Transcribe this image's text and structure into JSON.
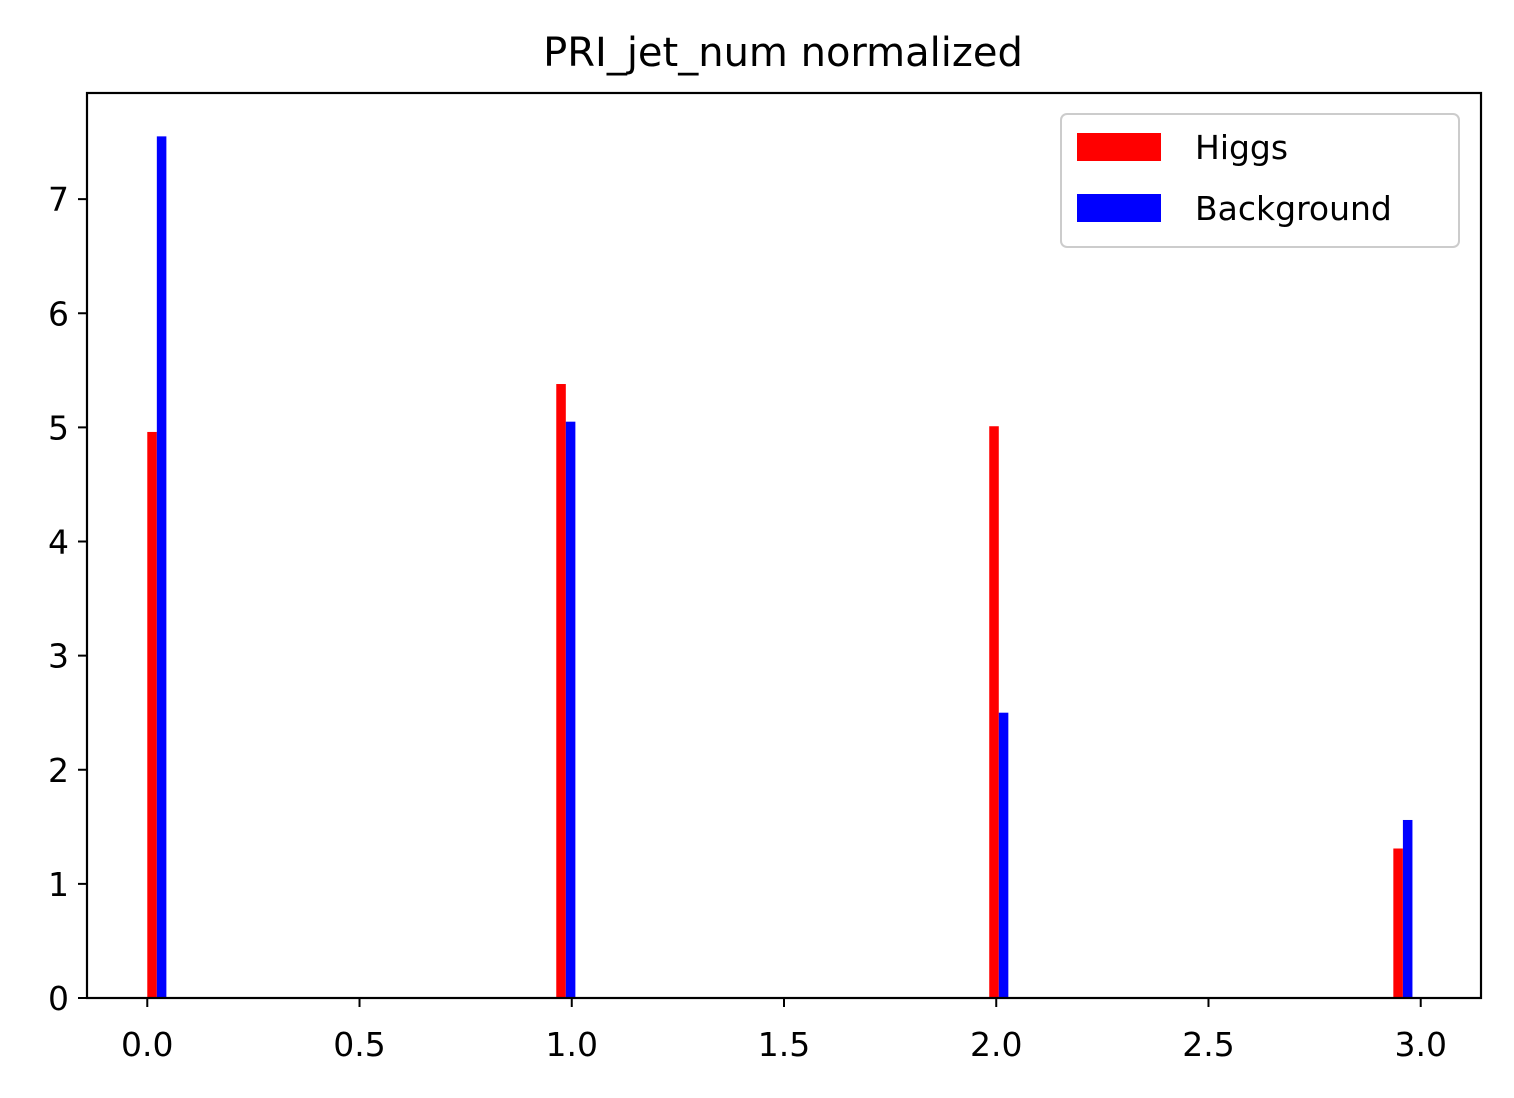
{
  "chart_data": {
    "type": "bar",
    "title": "PRI_jet_num normalized",
    "xlabel": "",
    "ylabel": "",
    "xlim": [
      -0.142,
      3.142
    ],
    "ylim": [
      0,
      7.93
    ],
    "xticks": [
      "0.0",
      "0.5",
      "1.0",
      "1.5",
      "2.0",
      "2.5",
      "3.0"
    ],
    "xtick_values": [
      0.0,
      0.5,
      1.0,
      1.5,
      2.0,
      2.5,
      3.0
    ],
    "yticks": [
      "0",
      "1",
      "2",
      "3",
      "4",
      "5",
      "6",
      "7"
    ],
    "ytick_values": [
      0,
      1,
      2,
      3,
      4,
      5,
      6,
      7
    ],
    "grid": false,
    "legend_position": "top-right",
    "series": [
      {
        "name": "Higgs",
        "color": "#ff0000",
        "bins": [
          {
            "x_start": 0.0,
            "x_end": 0.0225,
            "value": 4.96
          },
          {
            "x_start": 0.9635,
            "x_end": 0.986,
            "value": 5.38
          },
          {
            "x_start": 1.9835,
            "x_end": 2.006,
            "value": 5.01
          },
          {
            "x_start": 2.9355,
            "x_end": 2.958,
            "value": 1.31
          }
        ]
      },
      {
        "name": "Background",
        "color": "#0000ff",
        "bins": [
          {
            "x_start": 0.0225,
            "x_end": 0.045,
            "value": 7.55
          },
          {
            "x_start": 0.986,
            "x_end": 1.0085,
            "value": 5.05
          },
          {
            "x_start": 2.006,
            "x_end": 2.0285,
            "value": 2.5
          },
          {
            "x_start": 2.958,
            "x_end": 2.9805,
            "value": 1.56
          }
        ]
      }
    ]
  }
}
